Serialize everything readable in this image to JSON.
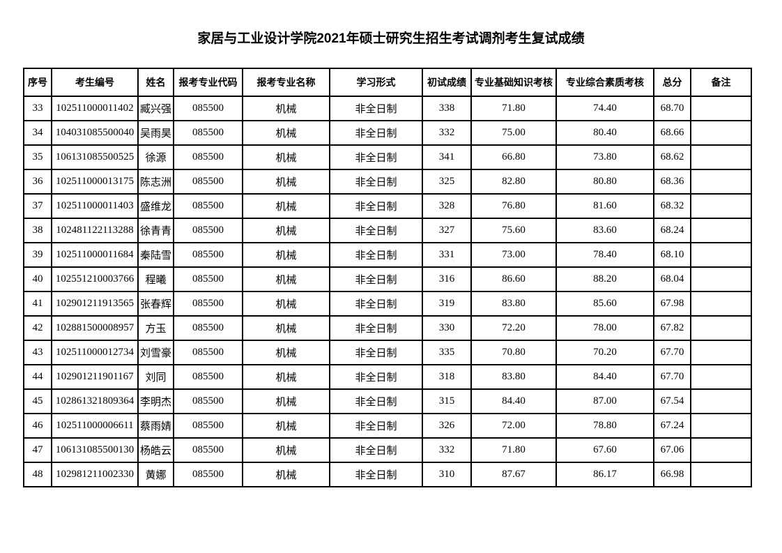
{
  "page": {
    "title": "家居与工业设计学院2021年硕士研究生招生考试调剂考生复试成绩"
  },
  "colors": {
    "background": "#ffffff",
    "text": "#000000",
    "table_border": "#000000"
  },
  "table": {
    "columns": [
      {
        "key": "seq",
        "label": "序号"
      },
      {
        "key": "candidate-id",
        "label": "考生编号"
      },
      {
        "key": "name",
        "label": "姓名"
      },
      {
        "key": "major-code",
        "label": "报考专业代码"
      },
      {
        "key": "major-name",
        "label": "报考专业名称"
      },
      {
        "key": "study-mode",
        "label": "学习形式"
      },
      {
        "key": "initial-score",
        "label": "初试成绩"
      },
      {
        "key": "basic-knowledge-score",
        "label": "专业基础知识考核"
      },
      {
        "key": "comprehensive-quality-score",
        "label": "专业综合素质考核"
      },
      {
        "key": "total-score",
        "label": "总分"
      },
      {
        "key": "remarks",
        "label": "备注"
      }
    ],
    "rows": [
      [
        "33",
        "102511000011402",
        "臧兴强",
        "085500",
        "机械",
        "非全日制",
        "338",
        "71.80",
        "74.40",
        "68.70",
        ""
      ],
      [
        "34",
        "104031085500040",
        "吴雨昊",
        "085500",
        "机械",
        "非全日制",
        "332",
        "75.00",
        "80.40",
        "68.66",
        ""
      ],
      [
        "35",
        "106131085500525",
        "徐源",
        "085500",
        "机械",
        "非全日制",
        "341",
        "66.80",
        "73.80",
        "68.62",
        ""
      ],
      [
        "36",
        "102511000013175",
        "陈志洲",
        "085500",
        "机械",
        "非全日制",
        "325",
        "82.80",
        "80.80",
        "68.36",
        ""
      ],
      [
        "37",
        "102511000011403",
        "盛维龙",
        "085500",
        "机械",
        "非全日制",
        "328",
        "76.80",
        "81.60",
        "68.32",
        ""
      ],
      [
        "38",
        "102481122113288",
        "徐青青",
        "085500",
        "机械",
        "非全日制",
        "327",
        "75.60",
        "83.60",
        "68.24",
        ""
      ],
      [
        "39",
        "102511000011684",
        "秦陆雪",
        "085500",
        "机械",
        "非全日制",
        "331",
        "73.00",
        "78.40",
        "68.10",
        ""
      ],
      [
        "40",
        "102551210003766",
        "程曦",
        "085500",
        "机械",
        "非全日制",
        "316",
        "86.60",
        "88.20",
        "68.04",
        ""
      ],
      [
        "41",
        "102901211913565",
        "张春辉",
        "085500",
        "机械",
        "非全日制",
        "319",
        "83.80",
        "85.60",
        "67.98",
        ""
      ],
      [
        "42",
        "102881500008957",
        "方玉",
        "085500",
        "机械",
        "非全日制",
        "330",
        "72.20",
        "78.00",
        "67.82",
        ""
      ],
      [
        "43",
        "102511000012734",
        "刘雪豪",
        "085500",
        "机械",
        "非全日制",
        "335",
        "70.80",
        "70.20",
        "67.70",
        ""
      ],
      [
        "44",
        "102901211901167",
        "刘同",
        "085500",
        "机械",
        "非全日制",
        "318",
        "83.80",
        "84.40",
        "67.70",
        ""
      ],
      [
        "45",
        "102861321809364",
        "李明杰",
        "085500",
        "机械",
        "非全日制",
        "315",
        "84.40",
        "87.00",
        "67.54",
        ""
      ],
      [
        "46",
        "102511000006611",
        "蔡雨婧",
        "085500",
        "机械",
        "非全日制",
        "326",
        "72.00",
        "78.80",
        "67.24",
        ""
      ],
      [
        "47",
        "106131085500130",
        "杨皓云",
        "085500",
        "机械",
        "非全日制",
        "332",
        "71.80",
        "67.60",
        "67.06",
        ""
      ],
      [
        "48",
        "102981211002330",
        "黄娜",
        "085500",
        "机械",
        "非全日制",
        "310",
        "87.67",
        "86.17",
        "66.98",
        ""
      ]
    ]
  }
}
